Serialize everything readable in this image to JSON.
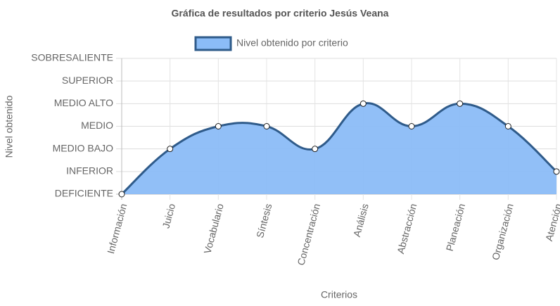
{
  "chart_data": {
    "type": "line",
    "title": "Gráfica de resultados por criterio Jesús Veana",
    "x_label": "Criterios",
    "y_label": "Nivel obtenido",
    "categories": [
      "Información",
      "Juicio",
      "Vocabulario",
      "Síntesis",
      "Concentración",
      "Análisis",
      "Abstracción",
      "Planeación",
      "Organización",
      "Atención"
    ],
    "series": [
      {
        "name": "Nivel obtenido por criterio",
        "color": "#2f5b8a",
        "fill": "#8bbcf7",
        "values": [
          0,
          2,
          3,
          3,
          2,
          4,
          3,
          4,
          3,
          1
        ]
      }
    ],
    "ylim": [
      0,
      6
    ],
    "yticks": [
      {
        "value": 0,
        "label": "DEFICIENTE"
      },
      {
        "value": 1,
        "label": "INFERIOR"
      },
      {
        "value": 2,
        "label": "MEDIO BAJO"
      },
      {
        "value": 3,
        "label": "MEDIO"
      },
      {
        "value": 4,
        "label": "MEDIO ALTO"
      },
      {
        "value": 5,
        "label": "SUPERIOR"
      },
      {
        "value": 6,
        "label": "SOBRESALIENTE"
      }
    ],
    "grid": true
  }
}
